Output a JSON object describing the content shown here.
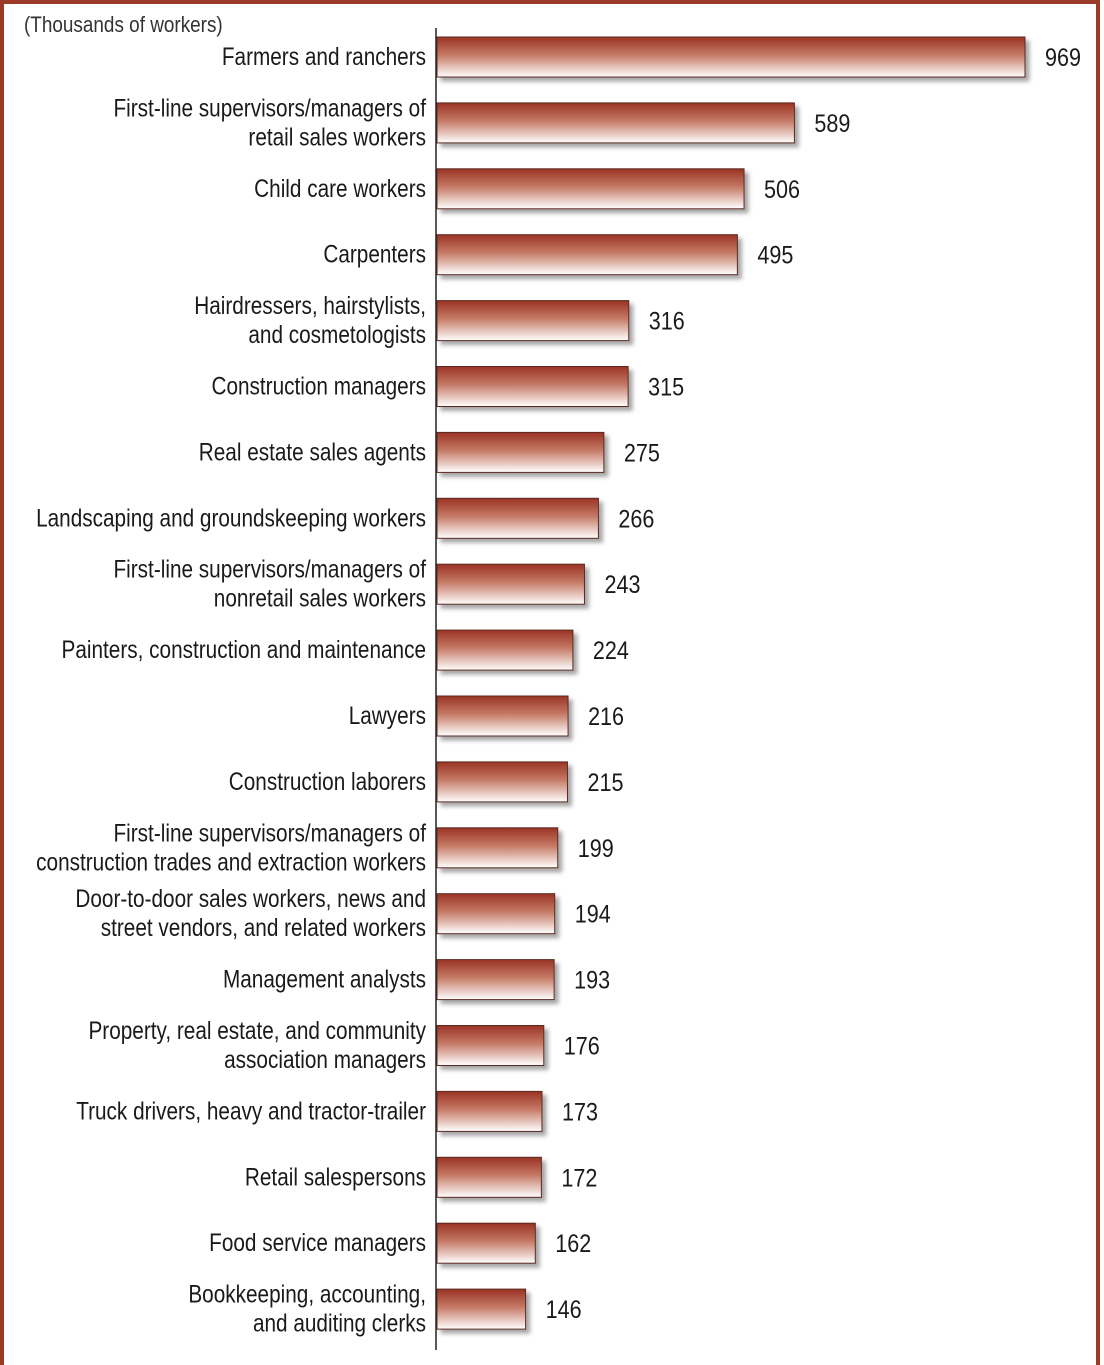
{
  "chart_data": {
    "type": "bar",
    "orientation": "horizontal",
    "unit_label": "(Thousands of workers)",
    "title": "",
    "xlabel": "",
    "ylabel": "",
    "xlim": [
      0,
      1000
    ],
    "grid": false,
    "bar_color": "#a0392a",
    "categories": [
      [
        "Farmers and ranchers"
      ],
      [
        "First-line supervisors/managers of",
        "retail sales workers"
      ],
      [
        "Child care workers"
      ],
      [
        "Carpenters"
      ],
      [
        "Hairdressers, hairstylists,",
        "and cosmetologists"
      ],
      [
        "Construction managers"
      ],
      [
        "Real estate sales agents"
      ],
      [
        "Landscaping and groundskeeping workers"
      ],
      [
        "First-line supervisors/managers of",
        "nonretail sales workers"
      ],
      [
        "Painters, construction and maintenance"
      ],
      [
        "Lawyers"
      ],
      [
        "Construction laborers"
      ],
      [
        "First-line supervisors/managers of",
        "construction trades and extraction workers"
      ],
      [
        "Door-to-door sales workers, news and",
        "street vendors, and related workers"
      ],
      [
        "Management analysts"
      ],
      [
        "Property, real estate, and community",
        "association managers"
      ],
      [
        "Truck drivers, heavy and tractor-trailer"
      ],
      [
        "Retail salespersons"
      ],
      [
        "Food service managers"
      ],
      [
        "Bookkeeping, accounting,",
        "and auditing clerks"
      ]
    ],
    "values": [
      969,
      589,
      506,
      495,
      316,
      315,
      275,
      266,
      243,
      224,
      216,
      215,
      199,
      194,
      193,
      176,
      173,
      172,
      162,
      146
    ],
    "value_labels": [
      "969",
      "589",
      "506",
      "495",
      "316",
      "315",
      "275",
      "266",
      "243",
      "224",
      "216",
      "215",
      "199",
      "194",
      "193",
      "176",
      "173",
      "172",
      "162",
      "146"
    ]
  }
}
